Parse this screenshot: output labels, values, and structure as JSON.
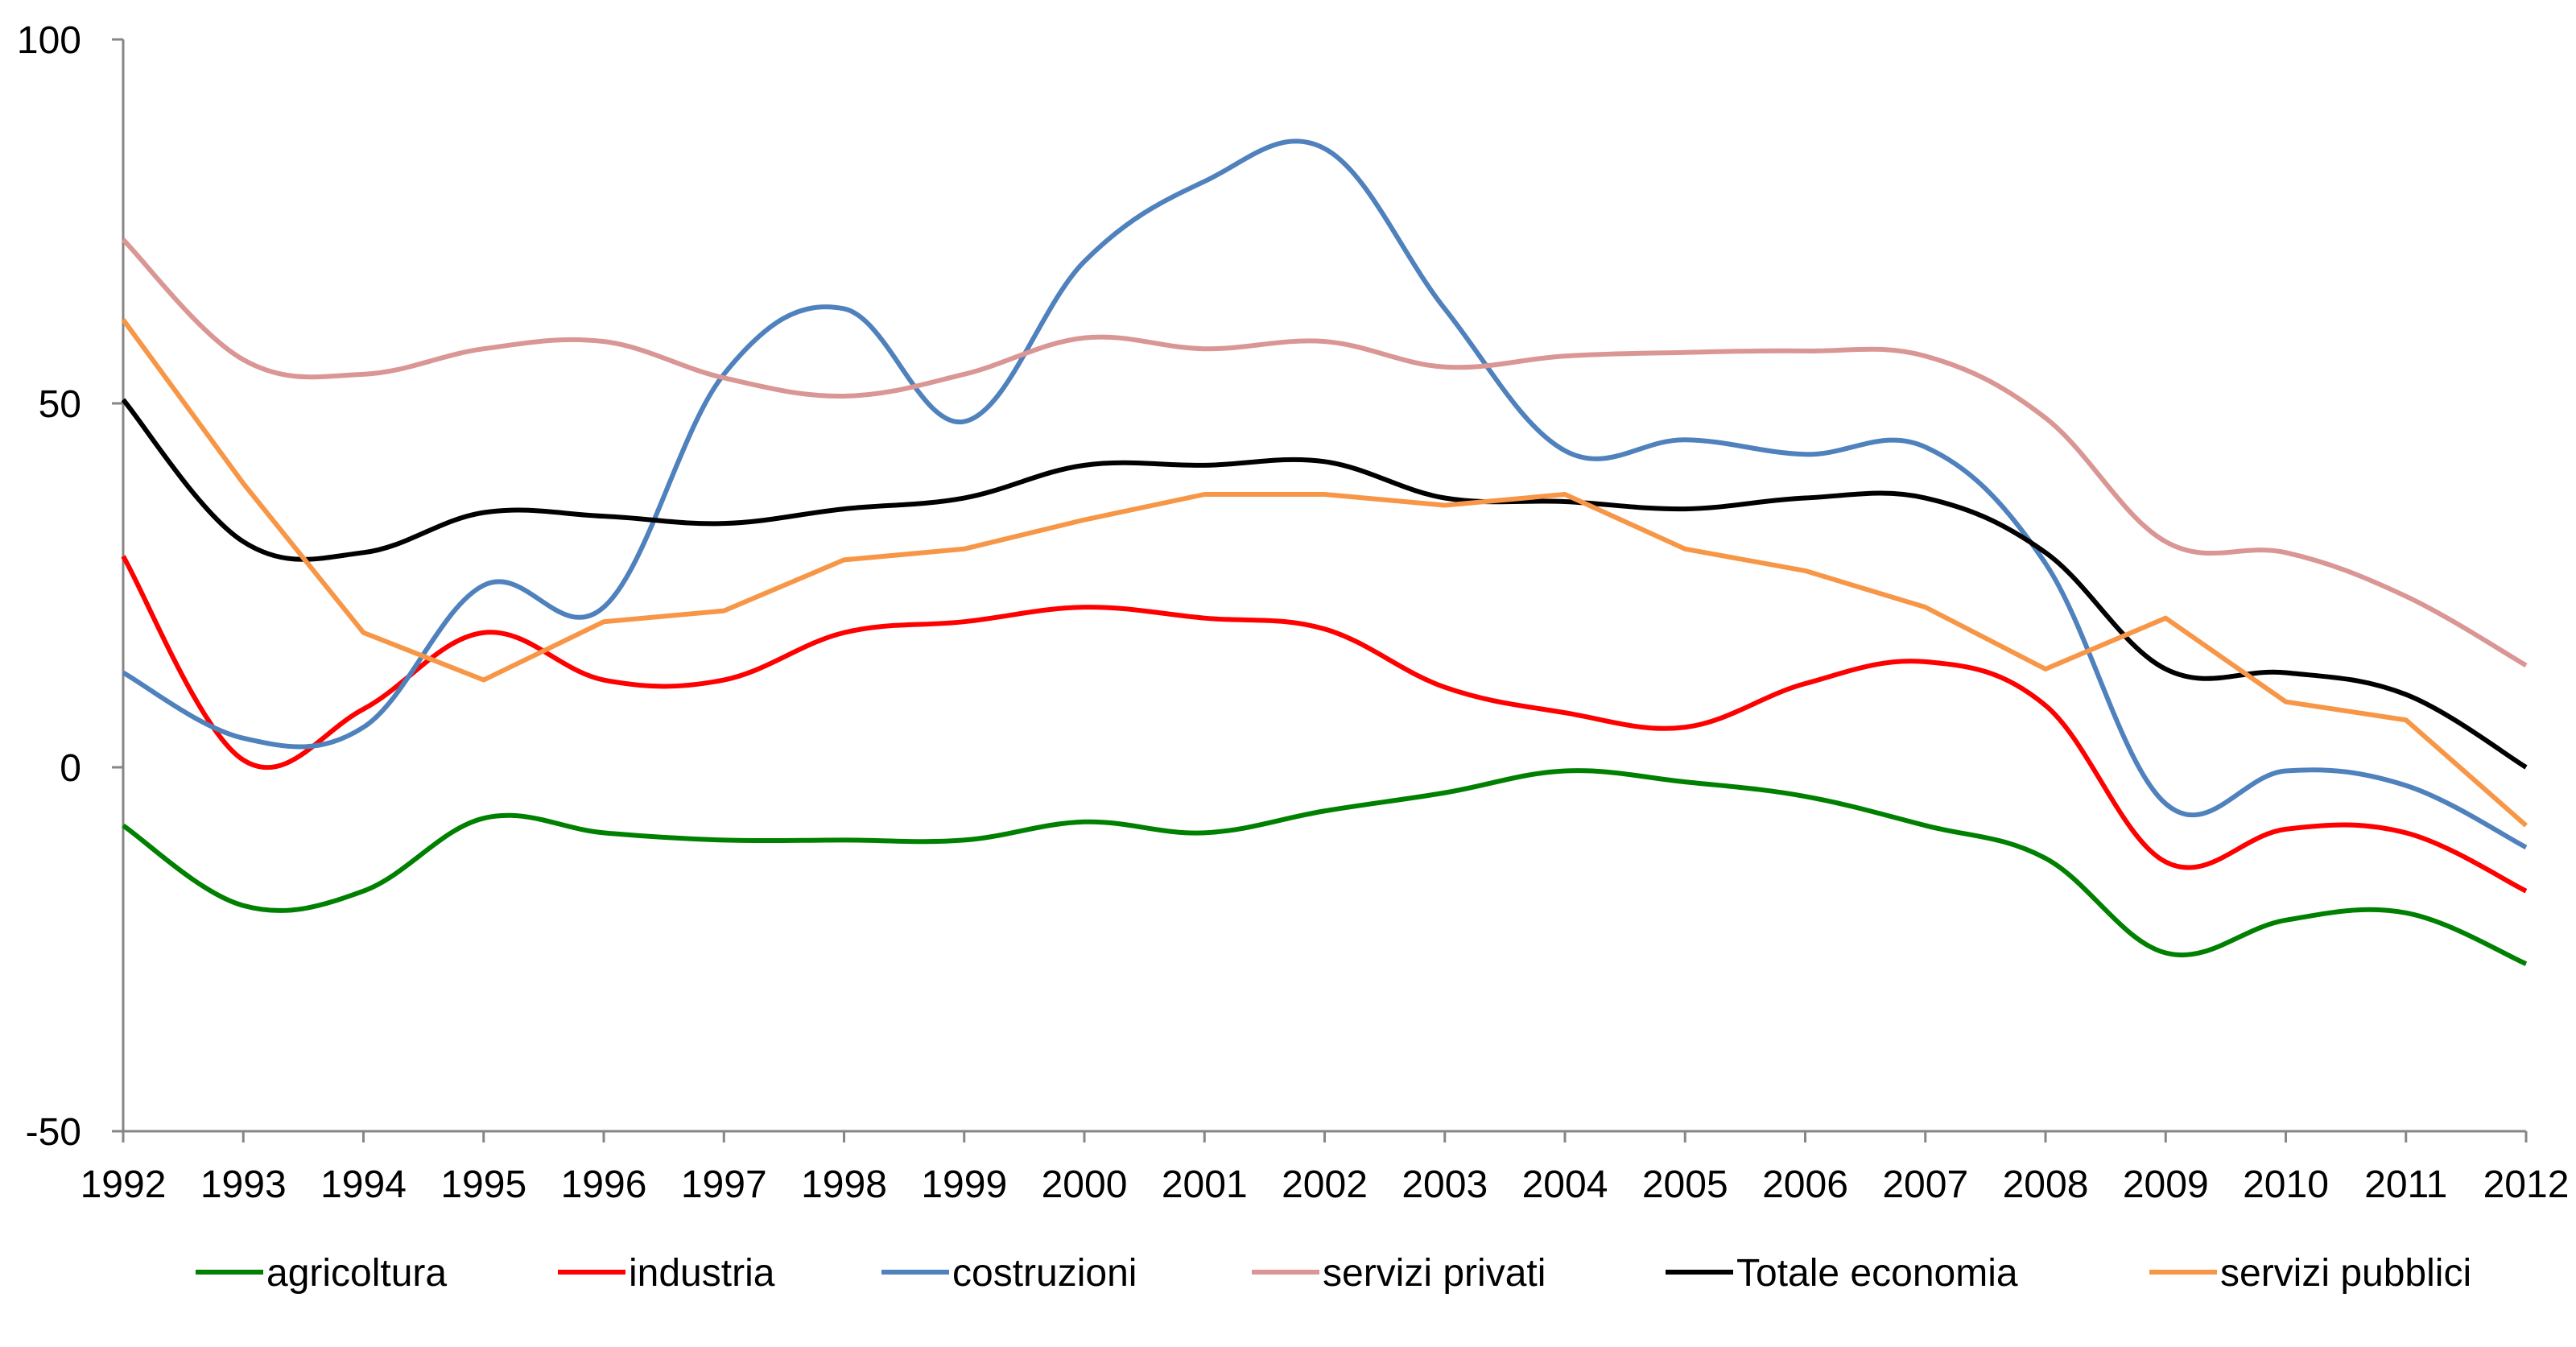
{
  "chart_data": {
    "type": "line",
    "x": [
      "1992",
      "1993",
      "1994",
      "1995",
      "1996",
      "1997",
      "1998",
      "1999",
      "2000",
      "2001",
      "2002",
      "2003",
      "2004",
      "2005",
      "2006",
      "2007",
      "2008",
      "2009",
      "2010",
      "2011",
      "2012"
    ],
    "ylim": [
      -50,
      100
    ],
    "yticks": [
      "100",
      "50",
      "0",
      "-50"
    ],
    "ytick_values": [
      100,
      50,
      0,
      -50
    ],
    "grid": false,
    "legend_position": "bottom",
    "series": [
      {
        "name": "agricoltura",
        "color": "#008000",
        "smooth": true,
        "values": [
          -8,
          -19,
          -17,
          -7,
          -9,
          -10,
          -10,
          -10,
          -7.5,
          -9,
          -6,
          -3.5,
          -0.5,
          -2,
          -4,
          -8,
          -12.5,
          -25.5,
          -21,
          -20,
          -27
        ]
      },
      {
        "name": "industria",
        "color": "#ff0000",
        "smooth": true,
        "values": [
          29,
          1,
          8,
          18.5,
          12,
          12,
          18.5,
          20,
          22,
          20.5,
          19,
          11,
          7.5,
          5.5,
          11.5,
          14.5,
          8.5,
          -13,
          -8.5,
          -9,
          -17
        ]
      },
      {
        "name": "costruzioni",
        "color": "#4f81bd",
        "smooth": true,
        "values": [
          13,
          4,
          5.5,
          25,
          22,
          54,
          63,
          47.5,
          69.5,
          80.5,
          85,
          63,
          43.5,
          45,
          43,
          44,
          28,
          -5,
          -0.5,
          -2.5,
          -11
        ]
      },
      {
        "name": "servizi privati",
        "color": "#d99694",
        "smooth": true,
        "values": [
          72.5,
          56,
          54,
          57.5,
          58.5,
          53.5,
          51,
          54,
          59,
          57.5,
          58.5,
          55,
          56.5,
          57,
          57.2,
          56.5,
          48,
          31,
          29.5,
          23.5,
          14
        ]
      },
      {
        "name": "Totale economia",
        "color": "#000000",
        "smooth": true,
        "values": [
          50.5,
          31,
          29.5,
          35,
          34.5,
          33.5,
          35.5,
          37,
          41.5,
          41.5,
          42,
          37,
          36.5,
          35.5,
          37,
          37,
          29.5,
          13.5,
          13,
          10,
          0
        ]
      },
      {
        "name": "servizi pubblici",
        "color": "#f79646",
        "smooth": false,
        "values": [
          61.5,
          39,
          18.5,
          12,
          20,
          21.5,
          28.5,
          30,
          34,
          37.5,
          37.5,
          36,
          37.5,
          30,
          27,
          22,
          13.5,
          20.5,
          9,
          6.5,
          -8
        ]
      }
    ]
  }
}
